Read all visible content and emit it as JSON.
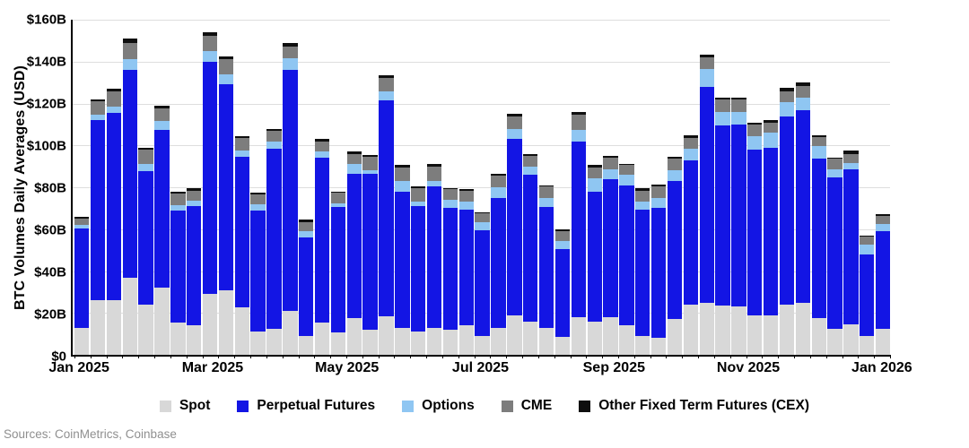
{
  "y_axis": {
    "label": "BTC Volumes Daily Averages (USD)",
    "tick_labels": [
      "$0",
      "$20B",
      "$40B",
      "$60B",
      "$80B",
      "$100B",
      "$120B",
      "$140B",
      "$160B"
    ],
    "tick_values": [
      0,
      20,
      40,
      60,
      80,
      100,
      120,
      140,
      160
    ],
    "max": 160
  },
  "x_axis": {
    "tick_labels": [
      "Jan 2025",
      "Mar 2025",
      "May 2025",
      "Jul 2025",
      "Sep 2025",
      "Nov 2025",
      "Jan 2026"
    ],
    "tick_positions_pct": [
      1.0,
      17.3,
      33.7,
      50.0,
      66.3,
      82.7,
      99.0
    ]
  },
  "legend": {
    "items": [
      {
        "label": "Spot",
        "color": "#d8d8d8"
      },
      {
        "label": "Perpetual Futures",
        "color": "#1315e4"
      },
      {
        "label": "Options",
        "color": "#8fc6f2"
      },
      {
        "label": "CME",
        "color": "#7d7d7d"
      },
      {
        "label": "Other Fixed Term Futures (CEX)",
        "color": "#0f0f0f"
      }
    ]
  },
  "footer": {
    "sources": "Sources: CoinMetrics, Coinbase"
  },
  "chart_data": {
    "type": "bar",
    "stacked": true,
    "title": "",
    "xlabel": "",
    "ylabel": "BTC Volumes Daily Averages (USD)",
    "unit": "USD billions (daily average per week)",
    "ylim": [
      0,
      160
    ],
    "grid": true,
    "legend_position": "bottom",
    "x_range": [
      "Jan 2025",
      "Jan 2026"
    ],
    "series_order": [
      "Spot",
      "Perpetual Futures",
      "Options",
      "CME",
      "Other Fixed Term Futures (CEX)"
    ],
    "colors": {
      "Spot": "#d8d8d8",
      "Perpetual Futures": "#1315e4",
      "Options": "#8fc6f2",
      "CME": "#7d7d7d",
      "Other Fixed Term Futures (CEX)": "#0f0f0f"
    },
    "bars": [
      [
        13.0,
        47.5,
        1.5,
        3.0,
        1.0
      ],
      [
        26.0,
        86.0,
        2.5,
        6.5,
        1.0
      ],
      [
        26.0,
        89.5,
        3.0,
        7.5,
        1.0
      ],
      [
        37.0,
        99.0,
        5.0,
        8.0,
        2.0
      ],
      [
        24.0,
        63.5,
        3.5,
        7.0,
        1.0
      ],
      [
        32.0,
        75.5,
        4.0,
        6.0,
        1.5
      ],
      [
        15.5,
        53.5,
        2.5,
        5.5,
        1.0
      ],
      [
        14.0,
        57.0,
        2.5,
        5.0,
        1.0
      ],
      [
        29.0,
        111.0,
        5.0,
        7.5,
        1.5
      ],
      [
        31.0,
        98.0,
        5.0,
        7.0,
        1.5
      ],
      [
        22.5,
        72.0,
        3.0,
        6.0,
        1.0
      ],
      [
        11.0,
        58.0,
        3.0,
        4.5,
        1.0
      ],
      [
        12.5,
        86.0,
        3.5,
        5.0,
        1.0
      ],
      [
        21.0,
        115.0,
        5.5,
        5.5,
        2.0
      ],
      [
        9.0,
        47.0,
        3.0,
        4.5,
        1.0
      ],
      [
        15.5,
        78.5,
        3.0,
        5.0,
        1.0
      ],
      [
        10.5,
        60.0,
        2.0,
        5.0,
        0.5
      ],
      [
        17.5,
        69.0,
        4.5,
        5.0,
        1.0
      ],
      [
        12.0,
        74.5,
        1.5,
        6.5,
        1.0
      ],
      [
        18.5,
        103.0,
        4.5,
        6.0,
        1.5
      ],
      [
        13.0,
        65.0,
        5.0,
        6.5,
        1.0
      ],
      [
        11.0,
        60.0,
        2.0,
        6.5,
        1.0
      ],
      [
        13.0,
        67.5,
        2.5,
        7.0,
        1.0
      ],
      [
        12.0,
        58.0,
        4.0,
        5.0,
        0.5
      ],
      [
        14.0,
        55.5,
        3.5,
        5.5,
        0.5
      ],
      [
        9.0,
        50.5,
        4.0,
        4.0,
        0.5
      ],
      [
        13.0,
        62.0,
        5.0,
        5.5,
        1.0
      ],
      [
        19.0,
        84.0,
        5.0,
        6.0,
        1.0
      ],
      [
        16.0,
        70.0,
        4.0,
        5.0,
        1.0
      ],
      [
        13.0,
        57.5,
        4.5,
        5.5,
        0.5
      ],
      [
        8.5,
        42.0,
        4.0,
        4.5,
        1.0
      ],
      [
        18.0,
        84.0,
        5.5,
        7.0,
        1.5
      ],
      [
        16.0,
        62.0,
        6.5,
        5.0,
        1.0
      ],
      [
        18.0,
        66.0,
        4.5,
        5.5,
        1.0
      ],
      [
        14.0,
        67.0,
        5.0,
        4.5,
        0.5
      ],
      [
        9.0,
        60.5,
        3.5,
        5.5,
        1.0
      ],
      [
        8.0,
        62.0,
        5.0,
        5.5,
        1.0
      ],
      [
        17.0,
        66.0,
        5.0,
        5.5,
        1.0
      ],
      [
        24.0,
        69.0,
        5.5,
        5.0,
        1.5
      ],
      [
        25.0,
        103.0,
        8.5,
        5.5,
        1.5
      ],
      [
        23.5,
        86.0,
        6.5,
        6.0,
        1.0
      ],
      [
        23.0,
        87.0,
        6.0,
        6.0,
        1.0
      ],
      [
        19.0,
        79.0,
        6.5,
        5.5,
        1.0
      ],
      [
        19.0,
        80.0,
        7.0,
        5.0,
        1.0
      ],
      [
        24.0,
        90.0,
        6.5,
        5.5,
        1.5
      ],
      [
        25.0,
        92.0,
        6.0,
        5.5,
        1.5
      ],
      [
        17.5,
        76.0,
        6.0,
        4.5,
        1.0
      ],
      [
        12.5,
        72.0,
        4.0,
        5.0,
        0.5
      ],
      [
        14.5,
        74.0,
        3.0,
        4.5,
        1.5
      ],
      [
        9.0,
        39.0,
        4.5,
        4.0,
        0.5
      ],
      [
        12.5,
        46.5,
        3.5,
        4.0,
        0.5
      ]
    ]
  }
}
